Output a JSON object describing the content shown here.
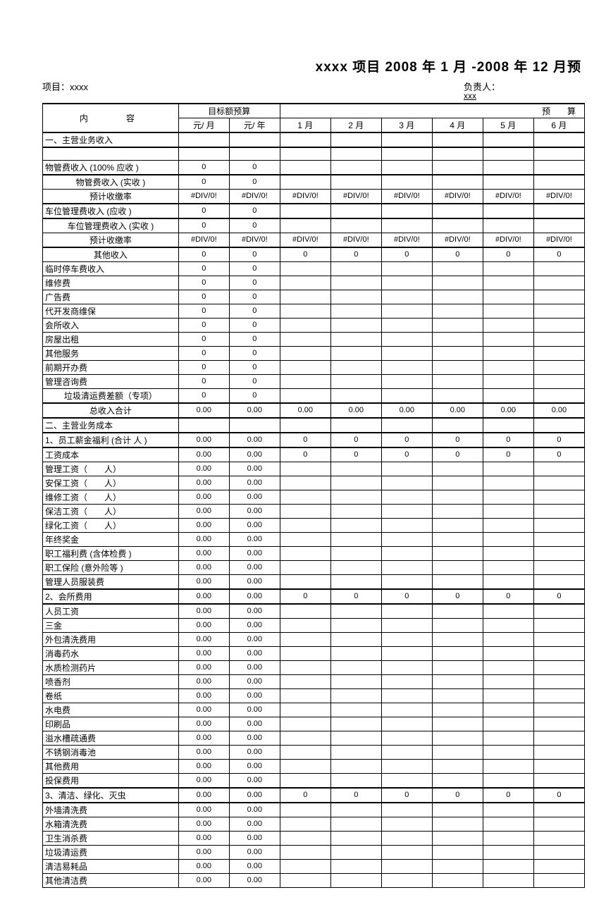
{
  "title": "xxxx 项目 2008 年 1 月 -2008 年 12 月预",
  "meta": {
    "project": "项目：xxxx",
    "owner": "负责人：",
    "owner_sub": "xxx"
  },
  "header": {
    "col1": "内　　容",
    "group_target": "目标额预算",
    "group_budget": "预　算",
    "sub": [
      "元/ 月",
      "元/ 年",
      "1 月",
      "2 月",
      "3 月",
      "4 月",
      "5 月",
      "6 月"
    ]
  },
  "rows": [
    {
      "label": "一、主营业务收入",
      "vals": [
        "",
        "",
        "",
        "",
        "",
        "",
        "",
        ""
      ],
      "center": false,
      "thickTop": true,
      "thickBottom": true
    },
    {
      "label": "",
      "vals": [
        "",
        "",
        "",
        "",
        "",
        "",
        "",
        ""
      ],
      "center": false
    },
    {
      "label": "物管费收入 (100% 应收 )",
      "vals": [
        "0",
        "0",
        "",
        "",
        "",
        "",
        "",
        ""
      ],
      "center": false,
      "thickBottom": true
    },
    {
      "label": "物管费收入 (实收 )",
      "vals": [
        "0",
        "0",
        "",
        "",
        "",
        "",
        "",
        ""
      ],
      "center": true
    },
    {
      "label": "预计收缴率",
      "vals": [
        "#DIV/0!",
        "#DIV/0!",
        "#DIV/0!",
        "#DIV/0!",
        "#DIV/0!",
        "#DIV/0!",
        "#DIV/0!",
        "#DIV/0!"
      ],
      "center": true,
      "thickBottom": true
    },
    {
      "label": "车位管理费收入 (应收 )",
      "vals": [
        "0",
        "0",
        "",
        "",
        "",
        "",
        "",
        ""
      ],
      "center": false,
      "thickBottom": true
    },
    {
      "label": "车位管理费收入 (实收 )",
      "vals": [
        "0",
        "0",
        "",
        "",
        "",
        "",
        "",
        ""
      ],
      "center": true
    },
    {
      "label": "预计收缴率",
      "vals": [
        "#DIV/0!",
        "#DIV/0!",
        "#DIV/0!",
        "#DIV/0!",
        "#DIV/0!",
        "#DIV/0!",
        "#DIV/0!",
        "#DIV/0!"
      ],
      "center": true,
      "thickBottom": true
    },
    {
      "label": "其他收入",
      "vals": [
        "0",
        "0",
        "0",
        "0",
        "0",
        "0",
        "0",
        "0"
      ],
      "center": true
    },
    {
      "label": "临时停车费收入",
      "vals": [
        "0",
        "0",
        "",
        "",
        "",
        "",
        "",
        ""
      ],
      "center": false
    },
    {
      "label": "维修费",
      "vals": [
        "0",
        "0",
        "",
        "",
        "",
        "",
        "",
        ""
      ],
      "center": false
    },
    {
      "label": "广告费",
      "vals": [
        "0",
        "0",
        "",
        "",
        "",
        "",
        "",
        ""
      ],
      "center": false
    },
    {
      "label": "代开发商维保",
      "vals": [
        "0",
        "0",
        "",
        "",
        "",
        "",
        "",
        ""
      ],
      "center": false
    },
    {
      "label": "会所收入",
      "vals": [
        "0",
        "0",
        "",
        "",
        "",
        "",
        "",
        ""
      ],
      "center": false
    },
    {
      "label": "房屋出租",
      "vals": [
        "0",
        "0",
        "",
        "",
        "",
        "",
        "",
        ""
      ],
      "center": false
    },
    {
      "label": "其他服务",
      "vals": [
        "0",
        "0",
        "",
        "",
        "",
        "",
        "",
        ""
      ],
      "center": false
    },
    {
      "label": "前期开办费",
      "vals": [
        "0",
        "0",
        "",
        "",
        "",
        "",
        "",
        ""
      ],
      "center": false
    },
    {
      "label": "管理咨询费",
      "vals": [
        "0",
        "0",
        "",
        "",
        "",
        "",
        "",
        ""
      ],
      "center": false
    },
    {
      "label": "垃圾清运费差额（专项）",
      "vals": [
        "0",
        "0",
        "",
        "",
        "",
        "",
        "",
        ""
      ],
      "center": true,
      "thickBottom": true
    },
    {
      "label": "总收入合计",
      "vals": [
        "0.00",
        "0.00",
        "0.00",
        "0.00",
        "0.00",
        "0.00",
        "0.00",
        "0.00"
      ],
      "center": true,
      "thickBottom": true
    },
    {
      "label": "二、主营业务成本",
      "vals": [
        "",
        "",
        "",
        "",
        "",
        "",
        "",
        ""
      ],
      "center": false,
      "thickBottom": true
    },
    {
      "label": "1、员工薪金福利 (合计 人 )",
      "vals": [
        "0.00",
        "0.00",
        "0",
        "0",
        "0",
        "0",
        "0",
        "0"
      ],
      "center": false,
      "thickBottom": true
    },
    {
      "label": "工资成本",
      "vals": [
        "0.00",
        "0.00",
        "0",
        "0",
        "0",
        "0",
        "0",
        "0"
      ],
      "center": false
    },
    {
      "label": "管理工资（　　人）",
      "vals": [
        "0.00",
        "0.00",
        "",
        "",
        "",
        "",
        "",
        ""
      ],
      "center": false
    },
    {
      "label": "安保工资（　　人）",
      "vals": [
        "0.00",
        "0.00",
        "",
        "",
        "",
        "",
        "",
        ""
      ],
      "center": false
    },
    {
      "label": "维修工资（　　人）",
      "vals": [
        "0.00",
        "0.00",
        "",
        "",
        "",
        "",
        "",
        ""
      ],
      "center": false
    },
    {
      "label": "保洁工资（　　人）",
      "vals": [
        "0.00",
        "0.00",
        "",
        "",
        "",
        "",
        "",
        ""
      ],
      "center": false
    },
    {
      "label": "绿化工资（　　人）",
      "vals": [
        "0.00",
        "0.00",
        "",
        "",
        "",
        "",
        "",
        ""
      ],
      "center": false
    },
    {
      "label": "年终奖金",
      "vals": [
        "0.00",
        "0.00",
        "",
        "",
        "",
        "",
        "",
        ""
      ],
      "center": false
    },
    {
      "label": "职工福利费 (含体检费 )",
      "vals": [
        "0.00",
        "0.00",
        "",
        "",
        "",
        "",
        "",
        ""
      ],
      "center": false
    },
    {
      "label": "职工保险 (意外险等 )",
      "vals": [
        "0.00",
        "0.00",
        "",
        "",
        "",
        "",
        "",
        ""
      ],
      "center": false
    },
    {
      "label": "管理人员服装费",
      "vals": [
        "0.00",
        "0.00",
        "",
        "",
        "",
        "",
        "",
        ""
      ],
      "center": false,
      "thickBottom": true
    },
    {
      "label": "2、会所费用",
      "vals": [
        "0.00",
        "0.00",
        "0",
        "0",
        "0",
        "0",
        "0",
        "0"
      ],
      "center": false,
      "thickBottom": true
    },
    {
      "label": "人员工资",
      "vals": [
        "0.00",
        "0.00",
        "",
        "",
        "",
        "",
        "",
        ""
      ],
      "center": false
    },
    {
      "label": "三金",
      "vals": [
        "0.00",
        "0.00",
        "",
        "",
        "",
        "",
        "",
        ""
      ],
      "center": false
    },
    {
      "label": "外包清洗费用",
      "vals": [
        "0.00",
        "0.00",
        "",
        "",
        "",
        "",
        "",
        ""
      ],
      "center": false
    },
    {
      "label": "消毒药水",
      "vals": [
        "0.00",
        "0.00",
        "",
        "",
        "",
        "",
        "",
        ""
      ],
      "center": false
    },
    {
      "label": "水质检测药片",
      "vals": [
        "0.00",
        "0.00",
        "",
        "",
        "",
        "",
        "",
        ""
      ],
      "center": false
    },
    {
      "label": "喷香剂",
      "vals": [
        "0.00",
        "0.00",
        "",
        "",
        "",
        "",
        "",
        ""
      ],
      "center": false
    },
    {
      "label": "卷纸",
      "vals": [
        "0.00",
        "0.00",
        "",
        "",
        "",
        "",
        "",
        ""
      ],
      "center": false
    },
    {
      "label": "水电费",
      "vals": [
        "0.00",
        "0.00",
        "",
        "",
        "",
        "",
        "",
        ""
      ],
      "center": false
    },
    {
      "label": "印刷品",
      "vals": [
        "0.00",
        "0.00",
        "",
        "",
        "",
        "",
        "",
        ""
      ],
      "center": false
    },
    {
      "label": "溢水槽疏通费",
      "vals": [
        "0.00",
        "0.00",
        "",
        "",
        "",
        "",
        "",
        ""
      ],
      "center": false
    },
    {
      "label": "不锈钢消毒池",
      "vals": [
        "0.00",
        "0.00",
        "",
        "",
        "",
        "",
        "",
        ""
      ],
      "center": false
    },
    {
      "label": "其他费用",
      "vals": [
        "0.00",
        "0.00",
        "",
        "",
        "",
        "",
        "",
        ""
      ],
      "center": false
    },
    {
      "label": "投保费用",
      "vals": [
        "0.00",
        "0.00",
        "",
        "",
        "",
        "",
        "",
        ""
      ],
      "center": false,
      "thickBottom": true
    },
    {
      "label": "3、清洁、绿化、灭虫",
      "vals": [
        "0.00",
        "0.00",
        "0",
        "0",
        "0",
        "0",
        "0",
        "0"
      ],
      "center": false,
      "thickBottom": true
    },
    {
      "label": "外墙清洗费",
      "vals": [
        "0.00",
        "0.00",
        "",
        "",
        "",
        "",
        "",
        ""
      ],
      "center": false
    },
    {
      "label": "水箱清洗费",
      "vals": [
        "0.00",
        "0.00",
        "",
        "",
        "",
        "",
        "",
        ""
      ],
      "center": false
    },
    {
      "label": "卫生消杀费",
      "vals": [
        "0.00",
        "0.00",
        "",
        "",
        "",
        "",
        "",
        ""
      ],
      "center": false
    },
    {
      "label": "垃圾清运费",
      "vals": [
        "0.00",
        "0.00",
        "",
        "",
        "",
        "",
        "",
        ""
      ],
      "center": false
    },
    {
      "label": "清洁易耗品",
      "vals": [
        "0.00",
        "0.00",
        "",
        "",
        "",
        "",
        "",
        ""
      ],
      "center": false
    },
    {
      "label": "其他清洁费",
      "vals": [
        "0.00",
        "0.00",
        "",
        "",
        "",
        "",
        "",
        ""
      ],
      "center": false
    }
  ]
}
